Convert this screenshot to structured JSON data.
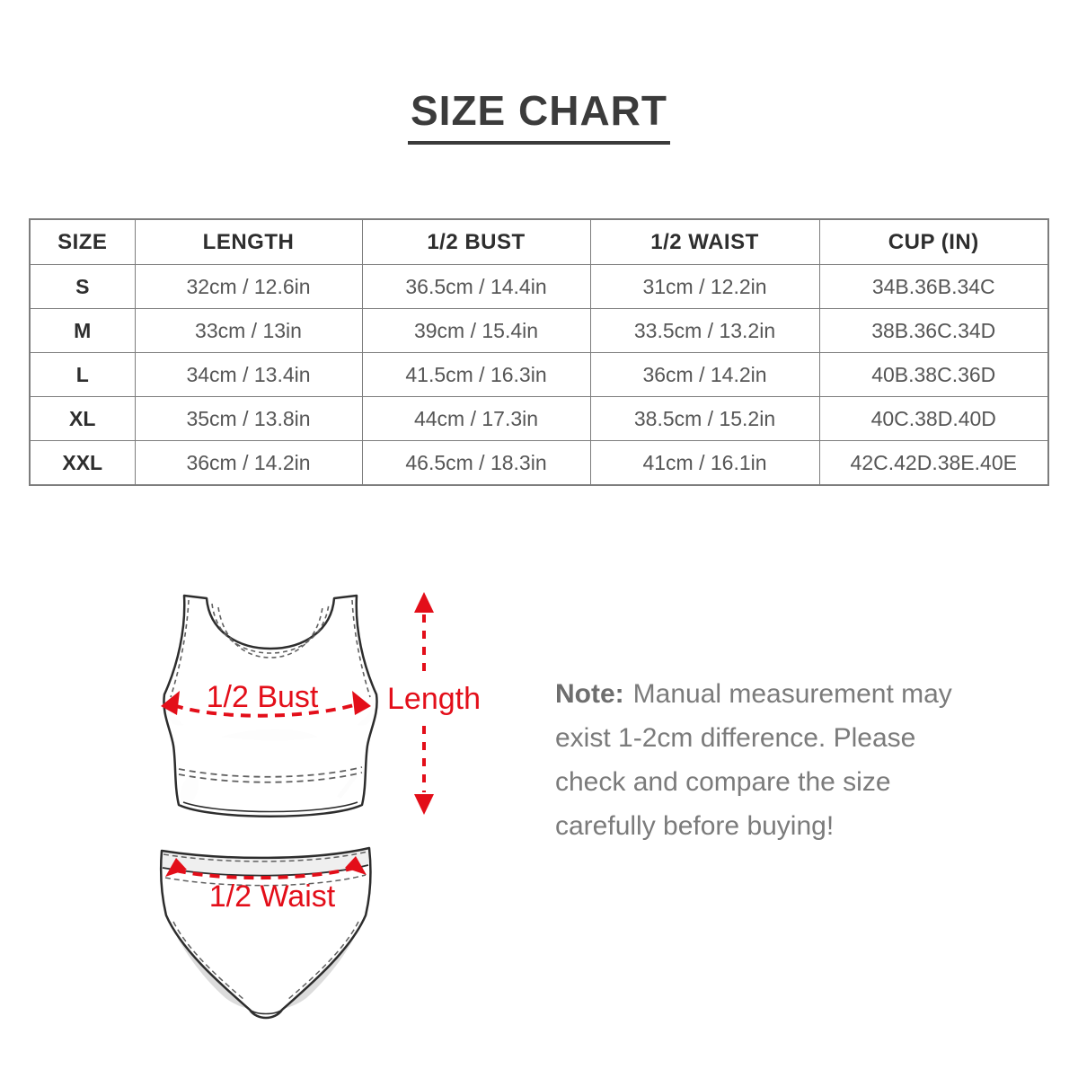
{
  "title": {
    "text": "SIZE CHART"
  },
  "size_table": {
    "headers": [
      "SIZE",
      "LENGTH",
      "1/2 BUST",
      "1/2 WAIST",
      "CUP (IN)"
    ],
    "rows": [
      [
        "S",
        "32cm / 12.6in",
        "36.5cm / 14.4in",
        "31cm / 12.2in",
        "34B.36B.34C"
      ],
      [
        "M",
        "33cm / 13in",
        "39cm / 15.4in",
        "33.5cm / 13.2in",
        "38B.36C.34D"
      ],
      [
        "L",
        "34cm / 13.4in",
        "41.5cm / 16.3in",
        "36cm / 14.2in",
        "40B.38C.36D"
      ],
      [
        "XL",
        "35cm / 13.8in",
        "44cm / 17.3in",
        "38.5cm / 15.2in",
        "40C.38D.40D"
      ],
      [
        "XXL",
        "36cm / 14.2in",
        "46.5cm / 18.3in",
        "41cm / 16.1in",
        "42C.42D.38E.40E"
      ]
    ]
  },
  "diagram": {
    "bust_label": "1/2 Bust",
    "length_label": "Length",
    "waist_label": "1/2 Waist"
  },
  "note": {
    "prefix": "Note:",
    "lines": [
      "Manual measurement may",
      "exist 1-2cm difference. Please",
      "check and compare the size",
      "carefully before buying!"
    ]
  },
  "colors": {
    "annotation_red": "#e30e19",
    "note_gray": "#7b7b7b",
    "table_border_gray": "#7d7d7d",
    "title_dark": "#3b3b3b",
    "garment_outline": "#2d2d2d",
    "garment_shade": "#dcdcdc"
  }
}
